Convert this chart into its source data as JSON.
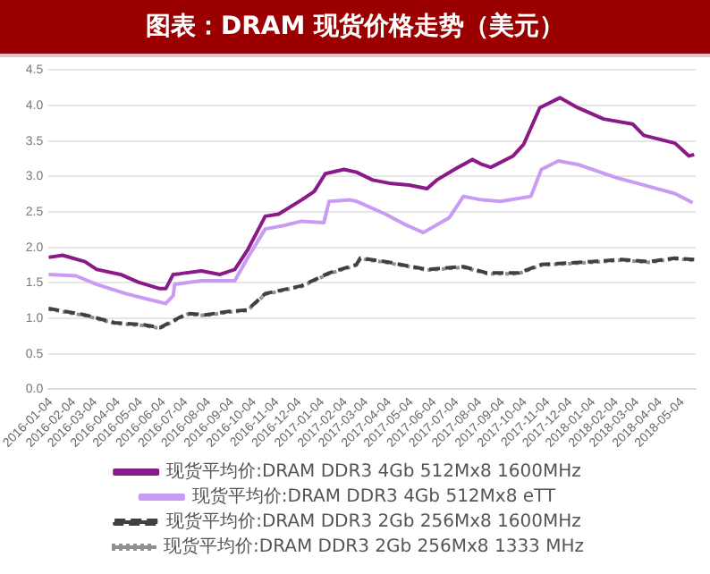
{
  "chart_data": {
    "type": "line",
    "title": "图表：DRAM 现货价格走势（美元）",
    "xlim": [
      "2016-01-01",
      "2018-05-22"
    ],
    "xticks": [
      "2016-01-04",
      "2016-02-04",
      "2016-03-04",
      "2016-04-04",
      "2016-05-04",
      "2016-06-04",
      "2016-07-04",
      "2016-08-04",
      "2016-09-04",
      "2016-10-04",
      "2016-11-04",
      "2016-12-04",
      "2017-01-04",
      "2017-02-04",
      "2017-03-04",
      "2017-04-04",
      "2017-05-04",
      "2017-06-04",
      "2017-07-04",
      "2017-08-04",
      "2017-09-04",
      "2017-10-04",
      "2017-11-04",
      "2017-12-04",
      "2018-01-04",
      "2018-02-04",
      "2018-03-04",
      "2018-04-04",
      "2018-05-04"
    ],
    "ylim": [
      0,
      4.5
    ],
    "yticks": [
      {
        "value": 0,
        "label": "0.0"
      },
      0.5,
      {
        "value": 1,
        "label": "1.0"
      },
      1.5,
      {
        "value": 2,
        "label": "2.0"
      },
      2.5,
      {
        "value": 3,
        "label": "3.0"
      },
      3.5,
      {
        "value": 4,
        "label": "4.0"
      },
      4.5
    ],
    "grid": "y",
    "legend": "bottom",
    "marker": "none",
    "series": [
      {
        "name": "现货平均价:DRAM DDR3 4Gb 512Mx8 1600MHz",
        "color": "#8b1a89",
        "line_style": "solid",
        "x": [
          "2016-01-01",
          "2016-01-20",
          "2016-02-19",
          "2016-03-06",
          "2016-04-07",
          "2016-05-01",
          "2016-05-30",
          "2016-06-07",
          "2016-06-17",
          "2016-06-26",
          "2016-07-25",
          "2016-08-19",
          "2016-09-08",
          "2016-09-25",
          "2016-10-19",
          "2016-11-06",
          "2016-12-07",
          "2016-12-24",
          "2017-01-08",
          "2017-02-02",
          "2017-02-19",
          "2017-03-13",
          "2017-04-07",
          "2017-05-01",
          "2017-05-25",
          "2017-06-07",
          "2017-07-01",
          "2017-07-25",
          "2017-08-07",
          "2017-08-19",
          "2017-09-18",
          "2017-10-02",
          "2017-10-24",
          "2017-11-20",
          "2017-12-14",
          "2018-01-18",
          "2018-02-26",
          "2018-03-13",
          "2018-04-24",
          "2018-05-13",
          "2018-05-20"
        ],
        "values": [
          1.86,
          1.89,
          1.8,
          1.69,
          1.62,
          1.51,
          1.42,
          1.42,
          1.62,
          1.63,
          1.67,
          1.62,
          1.69,
          1.96,
          2.44,
          2.47,
          2.67,
          2.79,
          3.04,
          3.1,
          3.06,
          2.95,
          2.9,
          2.88,
          2.83,
          2.95,
          3.1,
          3.24,
          3.17,
          3.13,
          3.29,
          3.45,
          3.97,
          4.11,
          3.97,
          3.81,
          3.74,
          3.58,
          3.47,
          3.29,
          3.31
        ]
      },
      {
        "name": "现货平均价:DRAM DDR3 4Gb 512Mx8 eTT",
        "color": "#c89cf5",
        "line_style": "solid",
        "x": [
          "2016-01-01",
          "2016-02-07",
          "2016-03-06",
          "2016-04-14",
          "2016-05-18",
          "2016-06-07",
          "2016-06-17",
          "2016-06-19",
          "2016-07-25",
          "2016-09-08",
          "2016-09-25",
          "2016-10-19",
          "2016-11-13",
          "2016-12-07",
          "2017-01-06",
          "2017-01-13",
          "2017-02-11",
          "2017-02-19",
          "2017-03-30",
          "2017-04-24",
          "2017-05-20",
          "2017-06-24",
          "2017-07-13",
          "2017-08-07",
          "2017-09-01",
          "2017-10-12",
          "2017-10-26",
          "2017-11-18",
          "2017-12-14",
          "2018-02-02",
          "2018-03-06",
          "2018-04-24",
          "2018-05-18"
        ],
        "values": [
          1.62,
          1.6,
          1.48,
          1.35,
          1.26,
          1.21,
          1.32,
          1.48,
          1.53,
          1.53,
          1.85,
          2.26,
          2.31,
          2.37,
          2.35,
          2.65,
          2.67,
          2.65,
          2.47,
          2.33,
          2.21,
          2.42,
          2.72,
          2.67,
          2.65,
          2.72,
          3.1,
          3.22,
          3.17,
          2.99,
          2.9,
          2.76,
          2.63
        ]
      },
      {
        "name": "现货平均价:DRAM DDR3 2Gb 256Mx8 1600MHz",
        "color": "#404040",
        "line_style": "dashed",
        "x": [
          "2016-01-01",
          "2016-02-19",
          "2016-03-30",
          "2016-05-08",
          "2016-05-30",
          "2016-07-06",
          "2016-07-30",
          "2016-09-01",
          "2016-09-25",
          "2016-10-19",
          "2016-12-07",
          "2017-01-13",
          "2017-02-19",
          "2017-02-24",
          "2017-03-30",
          "2017-05-25",
          "2017-07-13",
          "2017-08-14",
          "2017-09-25",
          "2017-10-26",
          "2018-01-01",
          "2018-02-11",
          "2018-03-20",
          "2018-04-24",
          "2018-05-20"
        ],
        "values": [
          1.14,
          1.05,
          0.94,
          0.91,
          0.87,
          1.07,
          1.05,
          1.1,
          1.12,
          1.35,
          1.46,
          1.64,
          1.76,
          1.85,
          1.8,
          1.69,
          1.73,
          1.64,
          1.64,
          1.76,
          1.8,
          1.83,
          1.8,
          1.85,
          1.83
        ]
      },
      {
        "name": "现货平均价:DRAM DDR3 2Gb 256Mx8 1333 MHz",
        "color": "#909090",
        "line_style": "dotted",
        "x": [
          "2016-01-01",
          "2016-02-19",
          "2016-03-30",
          "2016-05-08",
          "2016-05-30",
          "2016-07-06",
          "2016-07-30",
          "2016-09-01",
          "2016-09-25",
          "2016-10-19",
          "2016-12-07",
          "2017-01-13",
          "2017-02-19",
          "2017-02-24",
          "2017-03-30",
          "2017-05-25",
          "2017-07-13",
          "2017-08-14",
          "2017-09-25",
          "2017-10-26",
          "2018-01-01",
          "2018-02-11",
          "2018-03-20",
          "2018-04-24",
          "2018-05-20"
        ],
        "values": [
          1.13,
          1.04,
          0.93,
          0.9,
          0.86,
          1.06,
          1.04,
          1.09,
          1.11,
          1.34,
          1.45,
          1.63,
          1.75,
          1.84,
          1.79,
          1.68,
          1.72,
          1.63,
          1.63,
          1.75,
          1.79,
          1.82,
          1.79,
          1.84,
          1.82
        ]
      }
    ]
  }
}
